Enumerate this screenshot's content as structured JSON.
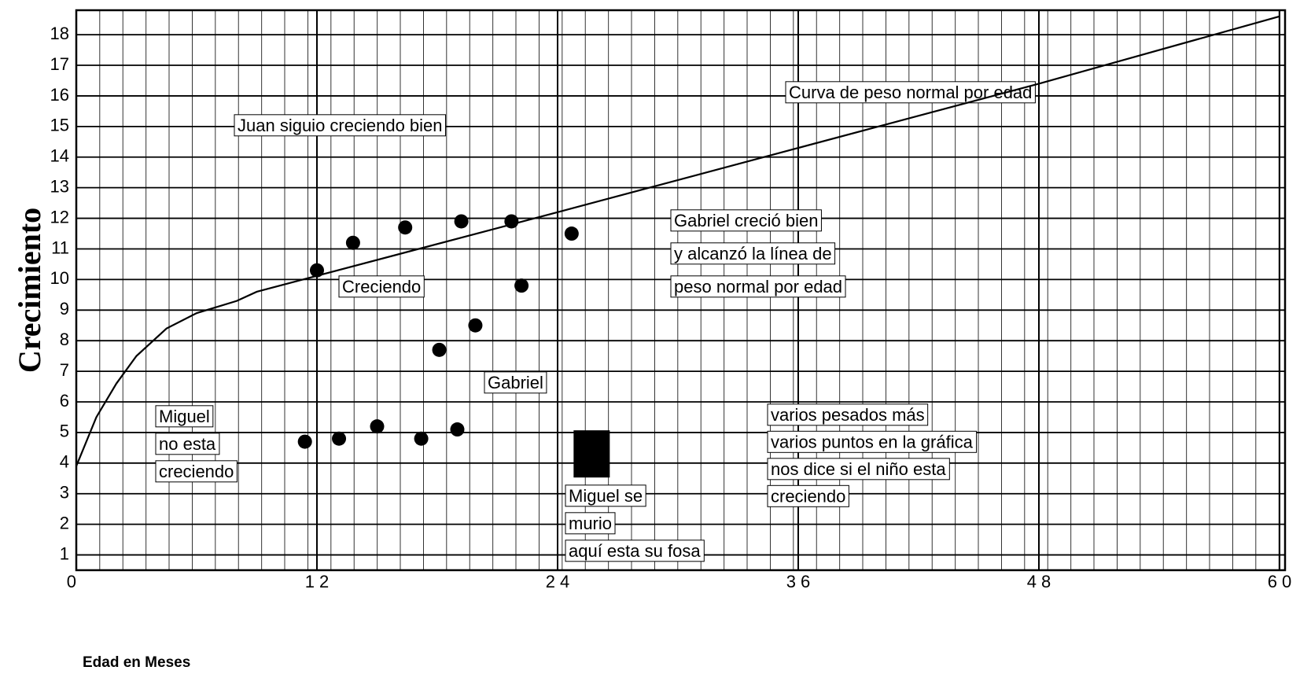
{
  "chart_data": {
    "type": "scatter",
    "y_label": "Crecimiento",
    "x_label": "Edad en Meses",
    "xlim": [
      0,
      60
    ],
    "ylim": [
      0.5,
      18.8
    ],
    "xticks": [
      0,
      {
        "value": 12,
        "label": "1 2"
      },
      {
        "value": 24,
        "label": "2 4"
      },
      {
        "value": 36,
        "label": "3 6"
      },
      {
        "value": 48,
        "label": "4 8"
      },
      {
        "value": 60,
        "label": "6 0"
      }
    ],
    "yticks": [
      1,
      2,
      3,
      4,
      5,
      6,
      7,
      8,
      9,
      10,
      11,
      12,
      13,
      14,
      15,
      16,
      17,
      18
    ],
    "grid": true,
    "series": [
      {
        "mode": "line",
        "color": "#000000",
        "x": [
          0,
          1,
          2,
          3,
          4.5,
          6,
          8,
          9,
          24,
          36,
          48,
          60
        ],
        "values": [
          3.9,
          5.5,
          6.6,
          7.5,
          8.4,
          8.9,
          9.3,
          9.6,
          12.2,
          14.3,
          16.4,
          18.6
        ]
      },
      {
        "mode": "markers",
        "marker": "circle",
        "color": "#000000",
        "x": [
          12.0,
          13.8,
          16.4,
          19.2,
          21.7
        ],
        "values": [
          10.3,
          11.2,
          11.7,
          11.9,
          11.9
        ]
      },
      {
        "name": "Gabriel",
        "mode": "markers",
        "marker": "circle",
        "color": "#000000",
        "x": [
          18.1,
          19.9,
          22.2,
          24.7
        ],
        "values": [
          7.7,
          8.5,
          9.8,
          11.5
        ]
      },
      {
        "mode": "markers",
        "marker": "circle",
        "color": "#000000",
        "x": [
          11.4,
          13.1,
          15.0,
          17.2,
          19.0
        ],
        "values": [
          4.7,
          4.8,
          5.2,
          4.8,
          5.1
        ]
      },
      {
        "mode": "markers",
        "marker": "square",
        "color": "#000000",
        "x": [
          25.7
        ],
        "values": [
          4.3
        ]
      }
    ],
    "annotations": [
      [
        "Curva de peso normal por edad"
      ],
      [
        "Juan siguio creciendo bien"
      ],
      [
        "Creciendo"
      ],
      [
        "Gabriel creció bien",
        "y alcanzó la línea de",
        "peso normal por edad"
      ],
      [
        "Miguel",
        "no esta",
        "creciendo"
      ],
      [
        "Miguel se",
        "murio",
        "aquí esta su fosa"
      ],
      [
        "varios pesados más",
        "varios puntos en la gráfica",
        "nos dice si el niño esta",
        "creciendo"
      ]
    ]
  }
}
